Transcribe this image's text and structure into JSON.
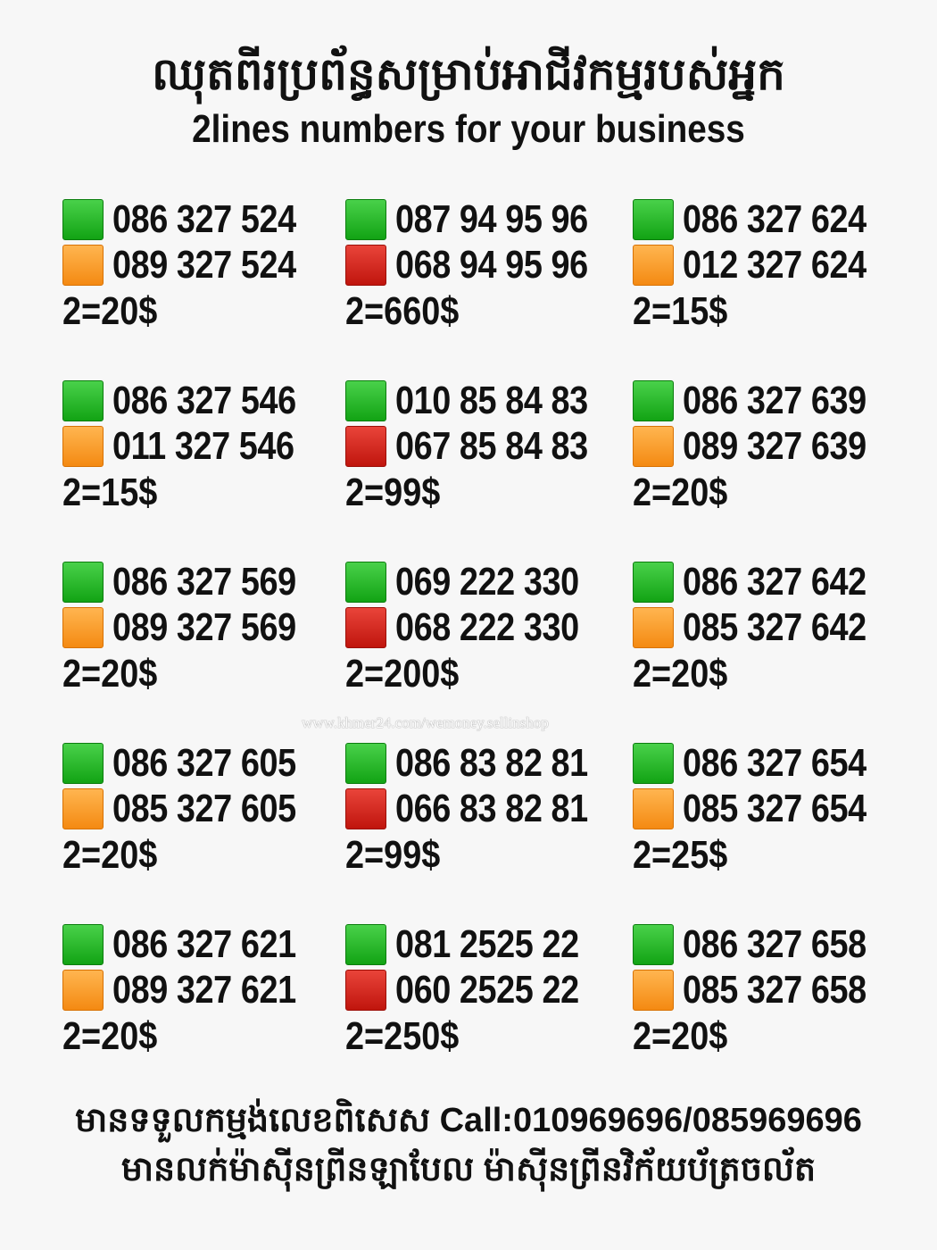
{
  "header": {
    "title_khmer": "ឈុតពីរប្រព័ន្ធសម្រាប់អាជីវកម្មរបស់អ្នក",
    "title_english": "2lines numbers for your business"
  },
  "colors": {
    "green": "#1fb21f",
    "orange": "#f9a030",
    "red": "#d2241b"
  },
  "listings": [
    {
      "lines": [
        {
          "color": "green",
          "number": "086 327 524"
        },
        {
          "color": "orange",
          "number": "089 327 524"
        }
      ],
      "price": "2=20$"
    },
    {
      "lines": [
        {
          "color": "green",
          "number": "087 94 95 96"
        },
        {
          "color": "red",
          "number": "068 94 95 96"
        }
      ],
      "price": "2=660$"
    },
    {
      "lines": [
        {
          "color": "green",
          "number": "086 327 624"
        },
        {
          "color": "orange",
          "number": "012 327 624"
        }
      ],
      "price": "2=15$"
    },
    {
      "lines": [
        {
          "color": "green",
          "number": "086 327 546"
        },
        {
          "color": "orange",
          "number": "011 327 546"
        }
      ],
      "price": "2=15$"
    },
    {
      "lines": [
        {
          "color": "green",
          "number": "010 85 84 83"
        },
        {
          "color": "red",
          "number": "067 85 84 83"
        }
      ],
      "price": "2=99$"
    },
    {
      "lines": [
        {
          "color": "green",
          "number": "086 327 639"
        },
        {
          "color": "orange",
          "number": "089 327 639"
        }
      ],
      "price": "2=20$"
    },
    {
      "lines": [
        {
          "color": "green",
          "number": "086 327 569"
        },
        {
          "color": "orange",
          "number": "089 327 569"
        }
      ],
      "price": "2=20$"
    },
    {
      "lines": [
        {
          "color": "green",
          "number": "069 222 330"
        },
        {
          "color": "red",
          "number": "068 222 330"
        }
      ],
      "price": "2=200$"
    },
    {
      "lines": [
        {
          "color": "green",
          "number": "086 327 642"
        },
        {
          "color": "orange",
          "number": "085 327 642"
        }
      ],
      "price": "2=20$"
    },
    {
      "lines": [
        {
          "color": "green",
          "number": "086 327 605"
        },
        {
          "color": "orange",
          "number": "085 327 605"
        }
      ],
      "price": "2=20$"
    },
    {
      "lines": [
        {
          "color": "green",
          "number": "086 83 82 81"
        },
        {
          "color": "red",
          "number": "066 83 82 81"
        }
      ],
      "price": "2=99$"
    },
    {
      "lines": [
        {
          "color": "green",
          "number": "086 327 654"
        },
        {
          "color": "orange",
          "number": "085 327 654"
        }
      ],
      "price": "2=25$"
    },
    {
      "lines": [
        {
          "color": "green",
          "number": "086 327 621"
        },
        {
          "color": "orange",
          "number": "089 327 621"
        }
      ],
      "price": "2=20$"
    },
    {
      "lines": [
        {
          "color": "green",
          "number": "081 2525 22"
        },
        {
          "color": "red",
          "number": "060 2525 22"
        }
      ],
      "price": "2=250$"
    },
    {
      "lines": [
        {
          "color": "green",
          "number": "086 327 658"
        },
        {
          "color": "orange",
          "number": "085 327 658"
        }
      ],
      "price": "2=20$"
    }
  ],
  "watermark": "www.khmer24.com/wemoney.sellinshop",
  "footer": {
    "line1": "មានទទួលកម្មង់លេខពិសេស Call:010969696/085969696",
    "line2": "មានលក់ម៉ាស៊ីនព្រីនឡាបែល ម៉ាស៊ីនព្រីនវិក័យប័ត្រចល័ត"
  }
}
